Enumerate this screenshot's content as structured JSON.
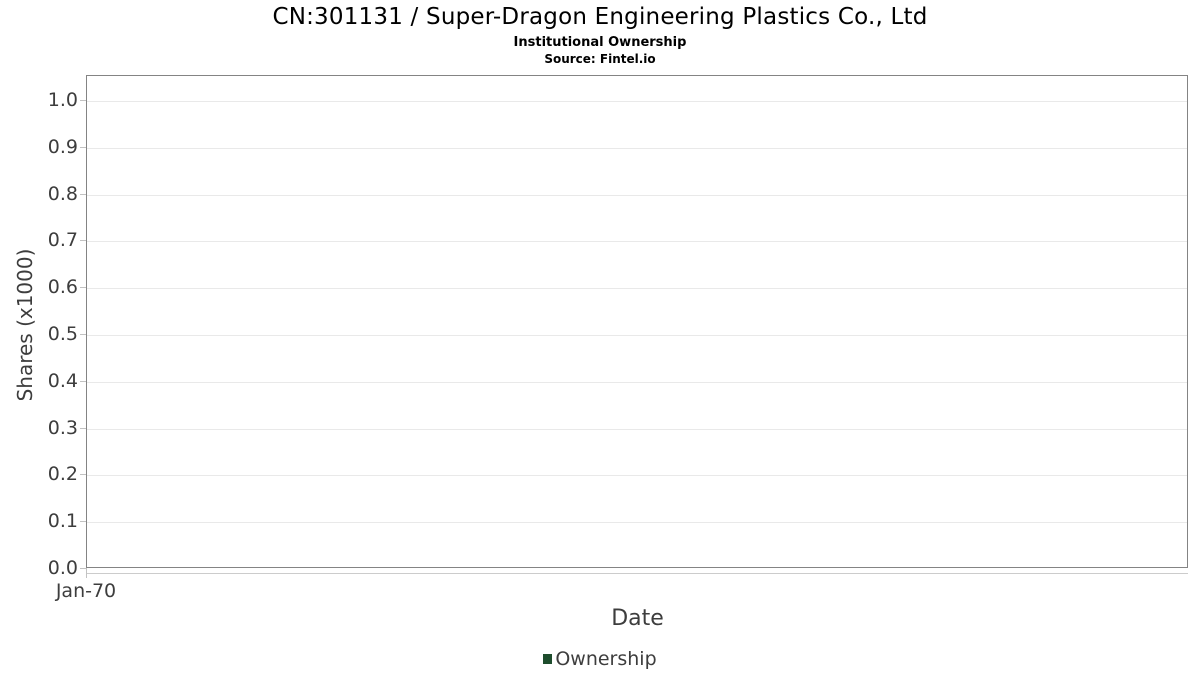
{
  "header": {
    "title": "CN:301131 / Super-Dragon Engineering Plastics Co., Ltd",
    "subtitle": "Institutional Ownership",
    "source": "Source: Fintel.io"
  },
  "axes": {
    "x_title": "Date",
    "y_title": "Shares (x1000)",
    "x_tick": "Jan-70"
  },
  "legend": {
    "items": [
      {
        "label": "Ownership",
        "color": "#1e4d2d"
      }
    ]
  },
  "colors": {
    "series_green": "#1e4d2d",
    "plot_border": "#848484",
    "gridline": "#e9e9e9",
    "tick_mark": "#c2c2c2",
    "axis_text": "#3d3d3d",
    "title_text": "#000000"
  },
  "chart_data": {
    "type": "line",
    "title": "CN:301131 / Super-Dragon Engineering Plastics Co., Ltd",
    "subtitle": "Institutional Ownership",
    "source": "Source: Fintel.io",
    "xlabel": "Date",
    "ylabel": "Shares (x1000)",
    "ylim": [
      0.0,
      1.05
    ],
    "yticks": [
      0.0,
      0.1,
      0.2,
      0.3,
      0.4,
      0.5,
      0.6,
      0.7,
      0.8,
      0.9,
      1.0
    ],
    "ytick_labels": [
      "0.0",
      "0.1",
      "0.2",
      "0.3",
      "0.4",
      "0.5",
      "0.6",
      "0.7",
      "0.8",
      "0.9",
      "1.0"
    ],
    "xtick_labels": [
      "Jan-70"
    ],
    "grid": true,
    "legend_position": "bottom",
    "series": [
      {
        "name": "Ownership",
        "color": "#1e4d2d",
        "x": [],
        "values": []
      }
    ]
  }
}
